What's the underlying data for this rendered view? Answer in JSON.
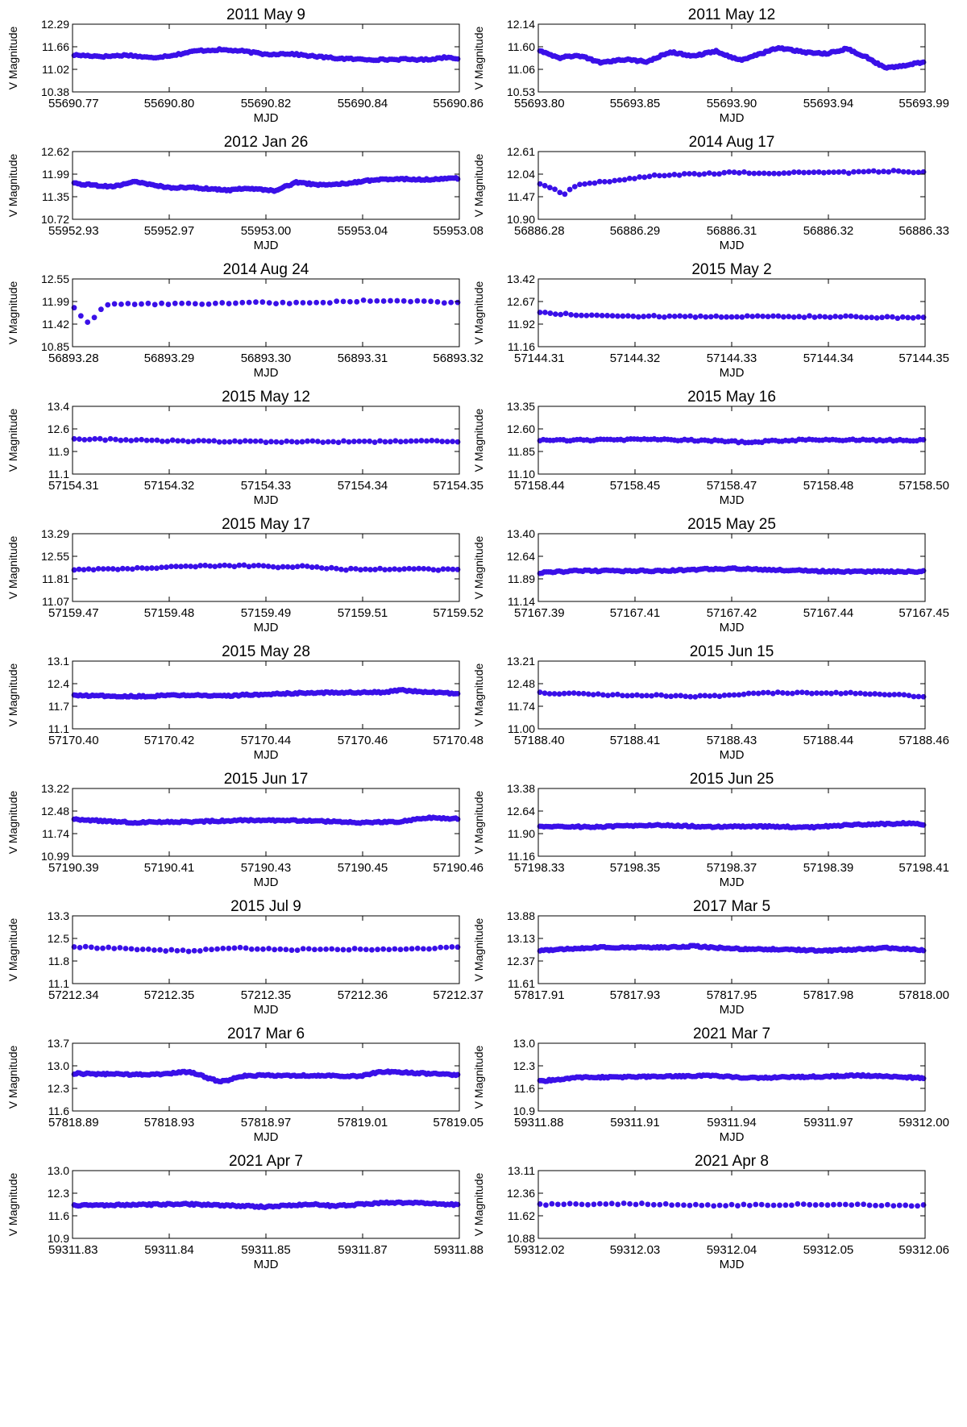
{
  "figure": {
    "ylabel": "V Magnitude",
    "xlabel": "MJD",
    "marker_color": "#3a10e8"
  },
  "chart_data": [
    {
      "type": "scatter",
      "title": "2011 May 9",
      "xlabel": "MJD",
      "ylabel": "V Magnitude",
      "xticks": [
        "55690.77",
        "55690.80",
        "55690.82",
        "55690.84",
        "55690.86"
      ],
      "yticks": [
        "10.38",
        "11.02",
        "11.66",
        "12.29"
      ],
      "ylim": [
        10.38,
        12.29
      ],
      "n_points": 170,
      "x": [
        0,
        0.08,
        0.14,
        0.2,
        0.26,
        0.32,
        0.38,
        0.44,
        0.5,
        0.56,
        0.62,
        0.68,
        0.74,
        0.8,
        0.86,
        0.92,
        0.97,
        1
      ],
      "y": [
        11.42,
        11.38,
        11.42,
        11.34,
        11.42,
        11.54,
        11.57,
        11.53,
        11.44,
        11.46,
        11.39,
        11.33,
        11.3,
        11.29,
        11.3,
        11.29,
        11.36,
        11.33
      ]
    },
    {
      "type": "scatter",
      "title": "2011 May 12",
      "xlabel": "MJD",
      "ylabel": "V Magnitude",
      "xticks": [
        "55693.80",
        "55693.85",
        "55693.90",
        "55693.94",
        "55693.99"
      ],
      "yticks": [
        "10.53",
        "11.06",
        "11.60",
        "12.14"
      ],
      "ylim": [
        10.53,
        12.14
      ],
      "n_points": 210,
      "x": [
        0,
        0.05,
        0.1,
        0.16,
        0.22,
        0.28,
        0.34,
        0.4,
        0.46,
        0.52,
        0.58,
        0.62,
        0.66,
        0.7,
        0.75,
        0.8,
        0.85,
        0.9,
        0.95,
        1
      ],
      "y": [
        11.52,
        11.34,
        11.4,
        11.22,
        11.3,
        11.25,
        11.48,
        11.38,
        11.5,
        11.28,
        11.45,
        11.58,
        11.52,
        11.46,
        11.44,
        11.56,
        11.36,
        11.1,
        11.16,
        11.24
      ]
    },
    {
      "type": "scatter",
      "title": "2012 Jan 26",
      "xlabel": "MJD",
      "ylabel": "V Magnitude",
      "xticks": [
        "55952.93",
        "55952.97",
        "55953.00",
        "55953.04",
        "55953.08"
      ],
      "yticks": [
        "10.72",
        "11.35",
        "11.99",
        "12.62"
      ],
      "ylim": [
        10.72,
        12.62
      ],
      "n_points": 210,
      "x": [
        0,
        0.1,
        0.16,
        0.25,
        0.3,
        0.4,
        0.45,
        0.52,
        0.58,
        0.64,
        0.7,
        0.78,
        0.84,
        0.9,
        1
      ],
      "y": [
        11.72,
        11.64,
        11.77,
        11.6,
        11.62,
        11.53,
        11.6,
        11.52,
        11.76,
        11.68,
        11.72,
        11.82,
        11.86,
        11.83,
        11.87
      ]
    },
    {
      "type": "scatter",
      "title": "2014 Aug 17",
      "xlabel": "MJD",
      "ylabel": "V Magnitude",
      "xticks": [
        "56886.28",
        "56886.29",
        "56886.31",
        "56886.32",
        "56886.33"
      ],
      "yticks": [
        "10.90",
        "11.47",
        "12.04",
        "12.61"
      ],
      "ylim": [
        10.9,
        12.61
      ],
      "n_points": 78,
      "x": [
        0,
        0.03,
        0.06,
        0.1,
        0.2,
        0.3,
        0.4,
        0.5,
        0.6,
        0.7,
        0.8,
        0.9,
        1
      ],
      "y": [
        11.78,
        11.7,
        11.52,
        11.78,
        11.88,
        12.0,
        12.04,
        12.08,
        12.06,
        12.08,
        12.08,
        12.12,
        12.08
      ]
    },
    {
      "type": "scatter",
      "title": "2014 Aug 24",
      "xlabel": "MJD",
      "ylabel": "V Magnitude",
      "xticks": [
        "56893.28",
        "56893.29",
        "56893.30",
        "56893.31",
        "56893.32"
      ],
      "yticks": [
        "10.85",
        "11.42",
        "11.99",
        "12.55"
      ],
      "ylim": [
        10.85,
        12.55
      ],
      "n_points": 58,
      "x": [
        0,
        0.04,
        0.08,
        0.16,
        0.3,
        0.45,
        0.6,
        0.75,
        0.9,
        1
      ],
      "y": [
        11.82,
        11.4,
        11.92,
        11.92,
        11.92,
        11.96,
        11.94,
        12.0,
        11.98,
        11.96
      ]
    },
    {
      "type": "scatter",
      "title": "2015 May 2",
      "xlabel": "MJD",
      "ylabel": "V Magnitude",
      "xticks": [
        "57144.31",
        "57144.32",
        "57144.33",
        "57144.34",
        "57144.35"
      ],
      "yticks": [
        "11.16",
        "11.92",
        "12.67",
        "13.42"
      ],
      "ylim": [
        11.16,
        13.42
      ],
      "n_points": 75,
      "x": [
        0,
        0.1,
        0.25,
        0.4,
        0.6,
        0.8,
        1
      ],
      "y": [
        12.3,
        12.22,
        12.18,
        12.16,
        12.17,
        12.16,
        12.12
      ]
    },
    {
      "type": "scatter",
      "title": "2015 May 12",
      "xlabel": "MJD",
      "ylabel": "V Magnitude",
      "xticks": [
        "57154.31",
        "57154.32",
        "57154.33",
        "57154.34",
        "57154.35"
      ],
      "yticks": [
        "11.1",
        "11.9",
        "12.6",
        "13.4"
      ],
      "ylim": [
        11.1,
        13.4
      ],
      "n_points": 75,
      "x": [
        0,
        0.2,
        0.4,
        0.6,
        0.8,
        1
      ],
      "y": [
        12.3,
        12.24,
        12.2,
        12.2,
        12.2,
        12.22
      ]
    },
    {
      "type": "scatter",
      "title": "2015 May 16",
      "xlabel": "MJD",
      "ylabel": "V Magnitude",
      "xticks": [
        "57158.44",
        "57158.45",
        "57158.47",
        "57158.48",
        "57158.50"
      ],
      "yticks": [
        "11.10",
        "11.85",
        "12.60",
        "13.35"
      ],
      "ylim": [
        11.1,
        13.35
      ],
      "n_points": 115,
      "x": [
        0,
        0.3,
        0.48,
        0.55,
        0.6,
        0.7,
        1
      ],
      "y": [
        12.22,
        12.25,
        12.2,
        12.14,
        12.2,
        12.24,
        12.22
      ]
    },
    {
      "type": "scatter",
      "title": "2015 May 17",
      "xlabel": "MJD",
      "ylabel": "V Magnitude",
      "xticks": [
        "57159.47",
        "57159.48",
        "57159.49",
        "57159.51",
        "57159.52"
      ],
      "yticks": [
        "11.07",
        "11.81",
        "12.55",
        "13.29"
      ],
      "ylim": [
        11.07,
        13.29
      ],
      "n_points": 80,
      "x": [
        0,
        0.2,
        0.3,
        0.45,
        0.55,
        0.6,
        0.7,
        0.85,
        1
      ],
      "y": [
        12.12,
        12.16,
        12.22,
        12.24,
        12.2,
        12.24,
        12.12,
        12.14,
        12.1
      ]
    },
    {
      "type": "scatter",
      "title": "2015 May 25",
      "xlabel": "MJD",
      "ylabel": "V Magnitude",
      "xticks": [
        "57167.39",
        "57167.41",
        "57167.42",
        "57167.44",
        "57167.45"
      ],
      "yticks": [
        "11.14",
        "11.89",
        "12.64",
        "13.40"
      ],
      "ylim": [
        11.14,
        13.4
      ],
      "n_points": 180,
      "x": [
        0,
        0.1,
        0.3,
        0.5,
        0.55,
        0.7,
        0.8,
        1
      ],
      "y": [
        12.1,
        12.16,
        12.16,
        12.24,
        12.22,
        12.16,
        12.14,
        12.14
      ]
    },
    {
      "type": "scatter",
      "title": "2015 May 28",
      "xlabel": "MJD",
      "ylabel": "V Magnitude",
      "xticks": [
        "57170.40",
        "57170.42",
        "57170.44",
        "57170.46",
        "57170.48"
      ],
      "yticks": [
        "11.1",
        "11.7",
        "12.4",
        "13.1"
      ],
      "ylim": [
        11.1,
        13.1
      ],
      "n_points": 190,
      "x": [
        0,
        0.2,
        0.25,
        0.4,
        0.6,
        0.8,
        0.86,
        0.9,
        1
      ],
      "y": [
        12.08,
        12.06,
        12.1,
        12.08,
        12.16,
        12.18,
        12.24,
        12.2,
        12.14
      ]
    },
    {
      "type": "scatter",
      "title": "2015 Jun 15",
      "xlabel": "MJD",
      "ylabel": "V Magnitude",
      "xticks": [
        "57188.40",
        "57188.41",
        "57188.43",
        "57188.44",
        "57188.46"
      ],
      "yticks": [
        "11.00",
        "11.74",
        "12.48",
        "13.21"
      ],
      "ylim": [
        11.0,
        13.21
      ],
      "n_points": 80,
      "x": [
        0,
        0.15,
        0.35,
        0.45,
        0.55,
        0.7,
        0.85,
        1
      ],
      "y": [
        12.18,
        12.12,
        12.08,
        12.06,
        12.16,
        12.18,
        12.16,
        12.06
      ]
    },
    {
      "type": "scatter",
      "title": "2015 Jun 17",
      "xlabel": "MJD",
      "ylabel": "V Magnitude",
      "xticks": [
        "57190.39",
        "57190.41",
        "57190.43",
        "57190.45",
        "57190.46"
      ],
      "yticks": [
        "10.99",
        "11.74",
        "12.48",
        "13.22"
      ],
      "ylim": [
        10.99,
        13.22
      ],
      "n_points": 190,
      "x": [
        0,
        0.15,
        0.3,
        0.45,
        0.6,
        0.75,
        0.85,
        0.92,
        1
      ],
      "y": [
        12.2,
        12.1,
        12.12,
        12.18,
        12.16,
        12.1,
        12.12,
        12.26,
        12.22
      ]
    },
    {
      "type": "scatter",
      "title": "2015 Jun 25",
      "xlabel": "MJD",
      "ylabel": "V Magnitude",
      "xticks": [
        "57198.33",
        "57198.35",
        "57198.37",
        "57198.39",
        "57198.41"
      ],
      "yticks": [
        "11.16",
        "11.90",
        "12.64",
        "13.38"
      ],
      "ylim": [
        11.16,
        13.38
      ],
      "n_points": 190,
      "x": [
        0,
        0.15,
        0.3,
        0.45,
        0.6,
        0.7,
        0.8,
        0.95,
        1
      ],
      "y": [
        12.14,
        12.12,
        12.18,
        12.12,
        12.14,
        12.1,
        12.18,
        12.24,
        12.2
      ]
    },
    {
      "type": "scatter",
      "title": "2015 Jul 9",
      "xlabel": "MJD",
      "ylabel": "V Magnitude",
      "xticks": [
        "57212.34",
        "57212.35",
        "57212.35",
        "57212.36",
        "57212.37"
      ],
      "yticks": [
        "11.1",
        "11.8",
        "12.5",
        "13.3"
      ],
      "ylim": [
        11.1,
        13.3
      ],
      "n_points": 68,
      "x": [
        0,
        0.2,
        0.3,
        0.4,
        0.55,
        0.7,
        0.85,
        1
      ],
      "y": [
        12.3,
        12.2,
        12.16,
        12.26,
        12.2,
        12.22,
        12.2,
        12.3
      ]
    },
    {
      "type": "scatter",
      "title": "2017 Mar 5",
      "xlabel": "MJD",
      "ylabel": "V Magnitude",
      "xticks": [
        "57817.91",
        "57817.93",
        "57817.95",
        "57817.98",
        "57818.00"
      ],
      "yticks": [
        "11.61",
        "12.37",
        "13.13",
        "13.88"
      ],
      "ylim": [
        11.61,
        13.88
      ],
      "n_points": 210,
      "x": [
        0,
        0.15,
        0.3,
        0.4,
        0.5,
        0.6,
        0.75,
        0.9,
        1
      ],
      "y": [
        12.72,
        12.82,
        12.82,
        12.86,
        12.78,
        12.76,
        12.72,
        12.8,
        12.74
      ]
    },
    {
      "type": "scatter",
      "title": "2017 Mar 6",
      "xlabel": "MJD",
      "ylabel": "V Magnitude",
      "xticks": [
        "57818.89",
        "57818.93",
        "57818.97",
        "57819.01",
        "57819.05"
      ],
      "yticks": [
        "11.6",
        "12.3",
        "13.0",
        "13.7"
      ],
      "ylim": [
        11.6,
        13.7
      ],
      "n_points": 210,
      "x": [
        0,
        0.2,
        0.3,
        0.38,
        0.45,
        0.6,
        0.75,
        0.8,
        1
      ],
      "y": [
        12.76,
        12.72,
        12.82,
        12.5,
        12.7,
        12.7,
        12.68,
        12.82,
        12.72
      ]
    },
    {
      "type": "scatter",
      "title": "2021 Mar 7",
      "xlabel": "MJD",
      "ylabel": "V Magnitude",
      "xticks": [
        "59311.88",
        "59311.91",
        "59311.94",
        "59311.97",
        "59312.00"
      ],
      "yticks": [
        "10.9",
        "11.6",
        "12.3",
        "13.0"
      ],
      "ylim": [
        10.9,
        13.0
      ],
      "n_points": 210,
      "x": [
        0,
        0.1,
        0.3,
        0.45,
        0.55,
        0.7,
        0.85,
        1
      ],
      "y": [
        11.82,
        11.94,
        11.96,
        12.0,
        11.92,
        11.96,
        12.0,
        11.92
      ]
    },
    {
      "type": "scatter",
      "title": "2021 Apr 7",
      "xlabel": "MJD",
      "ylabel": "V Magnitude",
      "xticks": [
        "59311.83",
        "59311.84",
        "59311.85",
        "59311.87",
        "59311.88"
      ],
      "yticks": [
        "10.9",
        "11.6",
        "12.3",
        "13.0"
      ],
      "ylim": [
        10.9,
        13.0
      ],
      "n_points": 190,
      "x": [
        0,
        0.3,
        0.5,
        0.62,
        0.68,
        0.8,
        0.9,
        1
      ],
      "y": [
        11.92,
        11.96,
        11.88,
        11.96,
        11.9,
        12.0,
        12.0,
        11.94
      ]
    },
    {
      "type": "scatter",
      "title": "2021 Apr 8",
      "xlabel": "MJD",
      "ylabel": "V Magnitude",
      "xticks": [
        "59312.02",
        "59312.03",
        "59312.04",
        "59312.05",
        "59312.06"
      ],
      "yticks": [
        "10.88",
        "11.62",
        "12.36",
        "13.11"
      ],
      "ylim": [
        10.88,
        13.11
      ],
      "n_points": 65,
      "x": [
        0,
        0.25,
        0.45,
        0.7,
        1
      ],
      "y": [
        12.0,
        12.02,
        11.96,
        12.0,
        11.96
      ]
    }
  ]
}
